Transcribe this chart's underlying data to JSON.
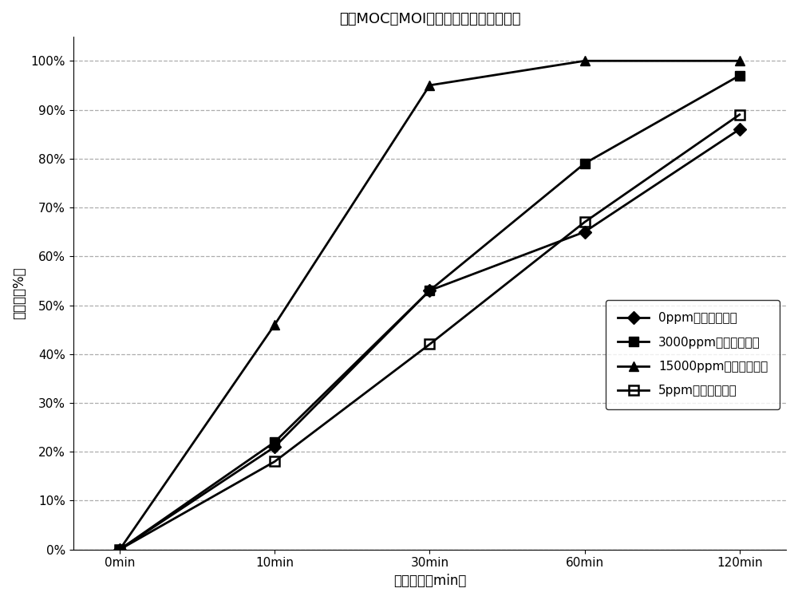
{
  "title": "基于MOC的MOI的氨基甲酸酯化反应促进",
  "xlabel": "反应时间（min）",
  "ylabel": "转化率（%）",
  "x_positions": [
    0,
    1,
    2,
    3,
    4
  ],
  "x_labels": [
    "0min",
    "10min",
    "30min",
    "60min",
    "120min"
  ],
  "series": [
    {
      "label": "0ppm（比较例１）",
      "values": [
        0,
        21,
        53,
        65,
        86
      ],
      "color": "#000000",
      "marker": "D",
      "markersize": 8,
      "linewidth": 2.0,
      "fillstyle": "full"
    },
    {
      "label": "3000ppm（实施例１）",
      "values": [
        0,
        22,
        53,
        79,
        97
      ],
      "color": "#000000",
      "marker": "s",
      "markersize": 8,
      "linewidth": 2.0,
      "fillstyle": "full"
    },
    {
      "label": "15000ppm（实施例２）",
      "values": [
        0,
        46,
        95,
        100,
        100
      ],
      "color": "#000000",
      "marker": "^",
      "markersize": 9,
      "linewidth": 2.0,
      "fillstyle": "full"
    },
    {
      "label": "5ppm（实施例３）",
      "values": [
        0,
        18,
        42,
        67,
        89
      ],
      "color": "#000000",
      "marker": "s",
      "markersize": 8,
      "linewidth": 2.0,
      "fillstyle": "none"
    }
  ],
  "ylim": [
    0,
    105
  ],
  "yticks": [
    0,
    10,
    20,
    30,
    40,
    50,
    60,
    70,
    80,
    90,
    100
  ],
  "ytick_labels": [
    "0%",
    "10%",
    "20%",
    "30%",
    "40%",
    "50%",
    "60%",
    "70%",
    "80%",
    "90%",
    "100%"
  ],
  "background_color": "#ffffff",
  "grid_color": "#999999",
  "title_fontsize": 13,
  "label_fontsize": 12,
  "tick_fontsize": 11,
  "legend_fontsize": 11
}
